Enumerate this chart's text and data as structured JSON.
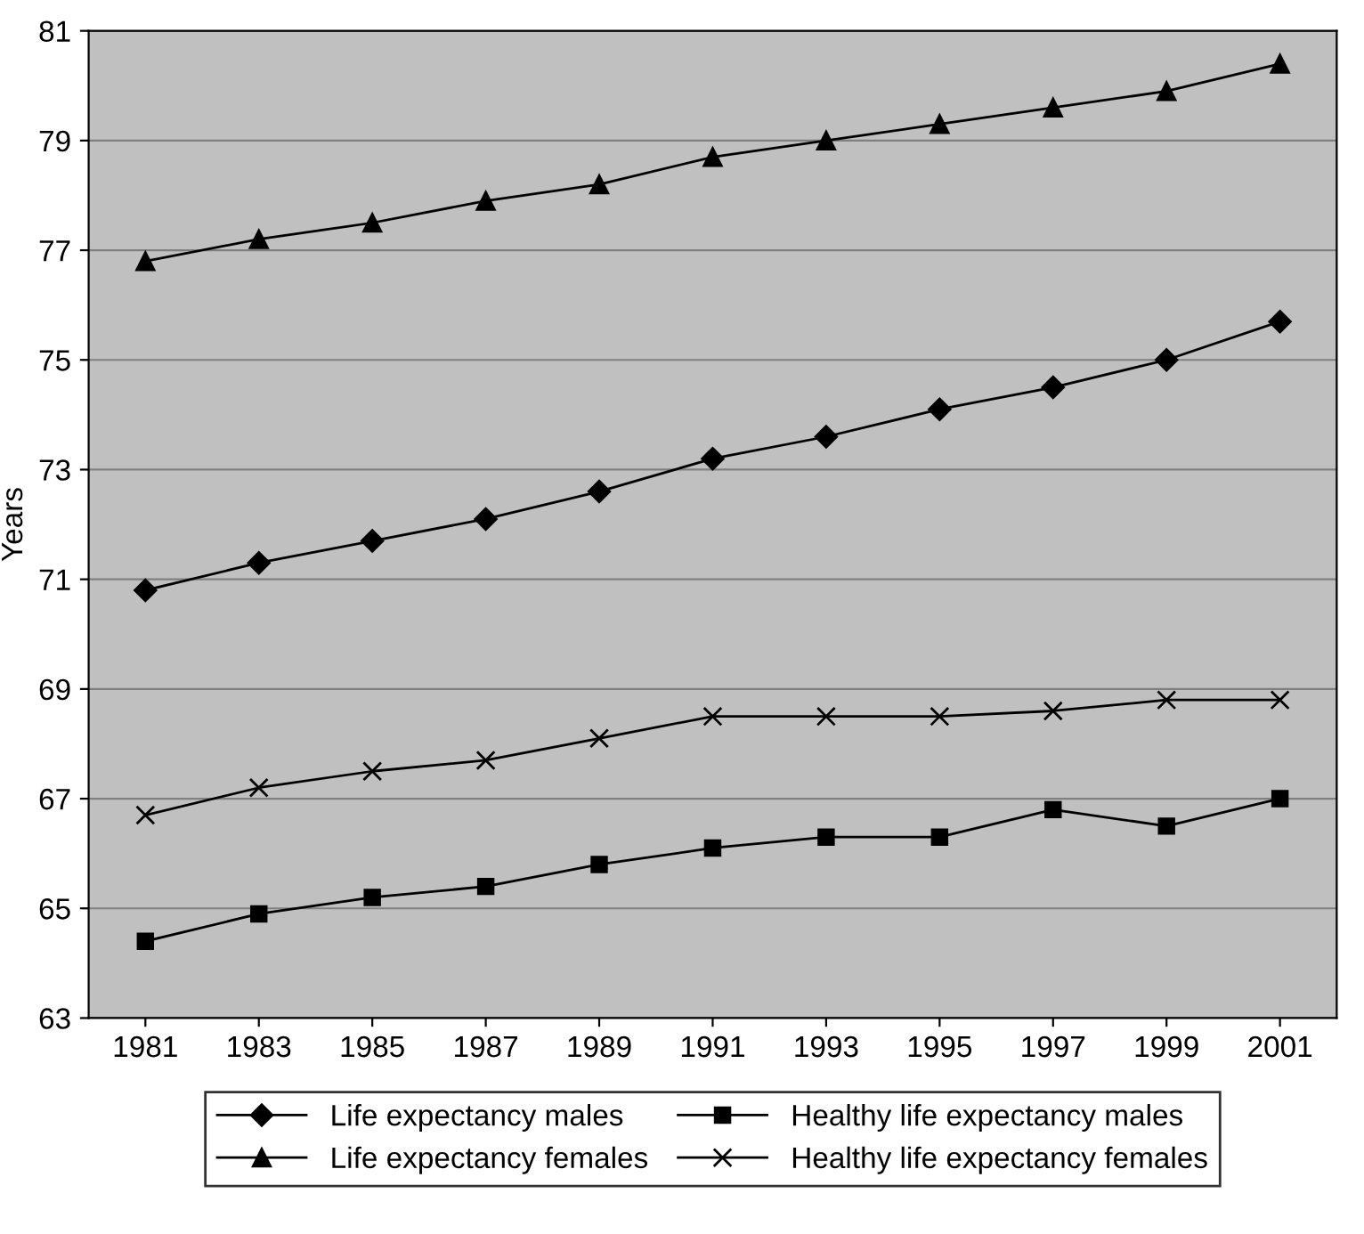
{
  "chart_data": {
    "type": "line",
    "ylabel": "Years",
    "x": [
      1981,
      1983,
      1985,
      1987,
      1989,
      1991,
      1993,
      1995,
      1997,
      1999,
      2001
    ],
    "xlim": [
      1980,
      2002
    ],
    "xticks": [
      1981,
      1983,
      1985,
      1987,
      1989,
      1991,
      1993,
      1995,
      1997,
      1999,
      2001
    ],
    "ylim": [
      63,
      81
    ],
    "yticks": [
      63,
      65,
      67,
      69,
      71,
      73,
      75,
      77,
      79,
      81
    ],
    "grid": "y",
    "legend": "bottom",
    "line_style": "solid",
    "series": [
      {
        "name": "Life expectancy males",
        "color": "#000000",
        "marker": "diamond",
        "values": [
          70.8,
          71.3,
          71.7,
          72.1,
          72.6,
          73.2,
          73.6,
          74.1,
          74.5,
          75.0,
          75.7
        ]
      },
      {
        "name": "Life expectancy females",
        "color": "#000000",
        "marker": "triangle",
        "values": [
          76.8,
          77.2,
          77.5,
          77.9,
          78.2,
          78.7,
          79.0,
          79.3,
          79.6,
          79.9,
          80.4
        ]
      },
      {
        "name": "Healthy life expectancy males",
        "color": "#000000",
        "marker": "square",
        "values": [
          64.4,
          64.9,
          65.2,
          65.4,
          65.8,
          66.1,
          66.3,
          66.3,
          66.8,
          66.5,
          67.0
        ]
      },
      {
        "name": "Healthy life expectancy females",
        "color": "#000000",
        "marker": "cross",
        "values": [
          66.7,
          67.2,
          67.5,
          67.7,
          68.1,
          68.5,
          68.5,
          68.5,
          68.6,
          68.8,
          68.8
        ]
      }
    ]
  }
}
